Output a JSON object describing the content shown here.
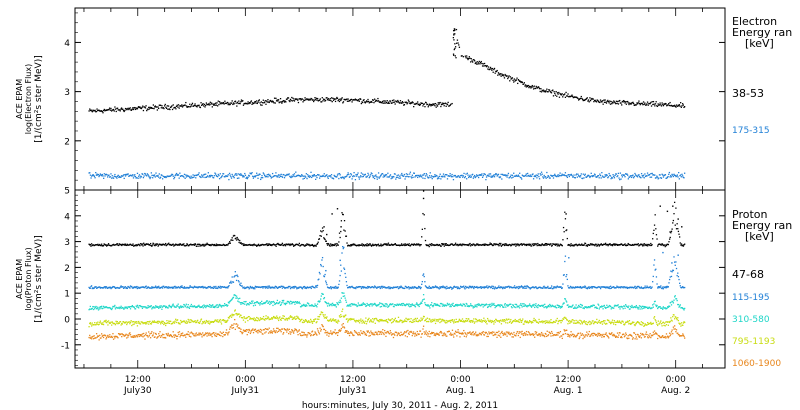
{
  "colors": {
    "black": "#000000",
    "blue": "#1f7fd6",
    "cyan": "#1fd6c8",
    "yellow": "#c8dc10",
    "orange": "#e8861c"
  },
  "chart_data": [
    {
      "type": "scatter",
      "panel": "electron",
      "ylabel": [
        "ACE EPAM",
        "log(Electron Flux)",
        "[1/(cm²s ster MeV)]"
      ],
      "ylim": [
        1.0,
        4.7
      ],
      "yticks": [
        2,
        3,
        4
      ],
      "x_unit": "hours since July 30, 2011 00:00",
      "xlim": [
        5,
        77.5
      ],
      "legend_title": [
        "Electron",
        "Energy ran",
        "[keV]"
      ],
      "series": [
        {
          "name": "38-53",
          "color": "#000000",
          "points": [
            [
              5,
              2.6
            ],
            [
              10,
              2.65
            ],
            [
              15,
              2.7
            ],
            [
              20,
              2.75
            ],
            [
              25,
              2.8
            ],
            [
              30,
              2.85
            ],
            [
              35,
              2.85
            ],
            [
              40,
              2.8
            ],
            [
              45,
              2.75
            ],
            [
              47,
              2.75
            ],
            [
              47.2,
              4.3
            ],
            [
              48,
              3.75
            ],
            [
              50,
              3.6
            ],
            [
              52,
              3.4
            ],
            [
              54,
              3.25
            ],
            [
              56,
              3.1
            ],
            [
              58,
              3.0
            ],
            [
              60,
              2.92
            ],
            [
              62,
              2.85
            ],
            [
              64,
              2.8
            ],
            [
              66,
              2.78
            ],
            [
              70,
              2.75
            ],
            [
              73,
              2.72
            ]
          ]
        },
        {
          "name": "175-315",
          "color": "#1f7fd6",
          "points": [
            [
              5,
              1.3
            ],
            [
              15,
              1.3
            ],
            [
              25,
              1.3
            ],
            [
              35,
              1.3
            ],
            [
              45,
              1.3
            ],
            [
              55,
              1.3
            ],
            [
              65,
              1.3
            ],
            [
              73,
              1.3
            ]
          ]
        }
      ]
    },
    {
      "type": "scatter",
      "panel": "proton",
      "ylabel": [
        "ACE EPAM",
        "log(Proton Flux)",
        "[1/(cm²s ster MeV)]"
      ],
      "ylim": [
        -1.9,
        5.0
      ],
      "yticks": [
        -1,
        0,
        1,
        2,
        3,
        4,
        5
      ],
      "x_unit": "hours since July 30, 2011 00:00",
      "xlim": [
        5,
        77.5
      ],
      "xlabel": "hours:minutes, July 30, 2011 - Aug. 2, 2011",
      "xtick_labels": [
        {
          "hour": 12,
          "time": "12:00",
          "date": "July30"
        },
        {
          "hour": 24,
          "time": "0:00",
          "date": "July31"
        },
        {
          "hour": 36,
          "time": "12:00",
          "date": "July31"
        },
        {
          "hour": 48,
          "time": "0:00",
          "date": "Aug. 1"
        },
        {
          "hour": 60,
          "time": "12:00",
          "date": "Aug. 1"
        },
        {
          "hour": 72,
          "time": "0:00",
          "date": "Aug. 2"
        }
      ],
      "legend_title": [
        "Proton",
        "Energy ran",
        "[keV]"
      ],
      "series": [
        {
          "name": "47-68",
          "color": "#000000",
          "base": 2.9
        },
        {
          "name": "115-195",
          "color": "#1f7fd6",
          "base": 1.25
        },
        {
          "name": "310-580",
          "color": "#1fd6c8",
          "base": 0.45
        },
        {
          "name": "795-1193",
          "color": "#c8dc10",
          "base": -0.15
        },
        {
          "name": "1060-1900",
          "color": "#e8861c",
          "base": -0.65
        }
      ]
    }
  ]
}
